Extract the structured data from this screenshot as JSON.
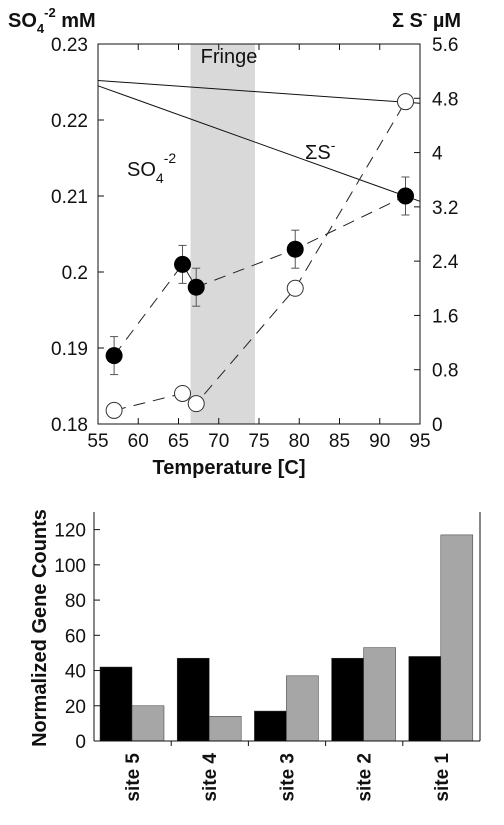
{
  "chart_data": [
    {
      "type": "scatter",
      "left_axis_title": "SO",
      "left_axis_sub": "4",
      "left_axis_sup": "-2",
      "left_axis_unit": "mM",
      "right_axis_title": "Σ S",
      "right_axis_sup": "-",
      "right_axis_unit": "µM",
      "xlabel": "Temperature [C]",
      "xlim": [
        55,
        95
      ],
      "ylim_left": [
        0.18,
        0.23
      ],
      "ylim_right": [
        0,
        5.6
      ],
      "x_ticks": [
        "55",
        "60",
        "65",
        "70",
        "75",
        "80",
        "85",
        "90",
        "95"
      ],
      "y_left_ticks": [
        "0.18",
        "0.19",
        "0.2",
        "0.21",
        "0.22",
        "0.23"
      ],
      "y_right_ticks": [
        "0",
        "0.8",
        "1.6",
        "2.4",
        "3.2",
        "4",
        "4.8",
        "5.6"
      ],
      "fringe": {
        "label": "Fringe",
        "x_range": [
          66.5,
          74.5
        ],
        "color": "#d9d9d9"
      },
      "series": [
        {
          "name": "SO4-2",
          "label_main": "SO",
          "label_sub": "4",
          "label_sup": "-2",
          "axis": "left",
          "marker": "filled-circle",
          "x": [
            57,
            65.5,
            67.2,
            79.5,
            93.2
          ],
          "y": [
            0.189,
            0.201,
            0.198,
            0.203,
            0.21
          ],
          "err": [
            0.0025,
            0.0025,
            0.0025,
            0.0025,
            0.0025
          ]
        },
        {
          "name": "ΣS-",
          "label_main": "ΣS",
          "label_sup": "-",
          "axis": "right",
          "marker": "open-circle",
          "x": [
            57,
            65.5,
            67.2,
            79.5,
            93.2
          ],
          "y": [
            0.2,
            0.45,
            0.3,
            2.0,
            4.75
          ]
        }
      ],
      "model_lines": [
        {
          "axis": "left",
          "x": [
            55,
            95
          ],
          "y": [
            0.2245,
            0.2093
          ]
        },
        {
          "axis": "left",
          "x": [
            55,
            95
          ],
          "y": [
            0.2252,
            0.2222
          ]
        }
      ]
    },
    {
      "type": "bar",
      "ylabel": "Normalized Gene Counts",
      "ylim": [
        0,
        130
      ],
      "y_ticks": [
        "0",
        "20",
        "40",
        "60",
        "80",
        "100",
        "120"
      ],
      "categories": [
        "site 5",
        "site 4",
        "site 3",
        "site 2",
        "site 1"
      ],
      "series": [
        {
          "color": "#000000",
          "values": [
            42,
            47,
            17,
            47,
            48
          ]
        },
        {
          "color": "#a6a6a6",
          "values": [
            20,
            14,
            37,
            53,
            117
          ]
        }
      ]
    }
  ]
}
